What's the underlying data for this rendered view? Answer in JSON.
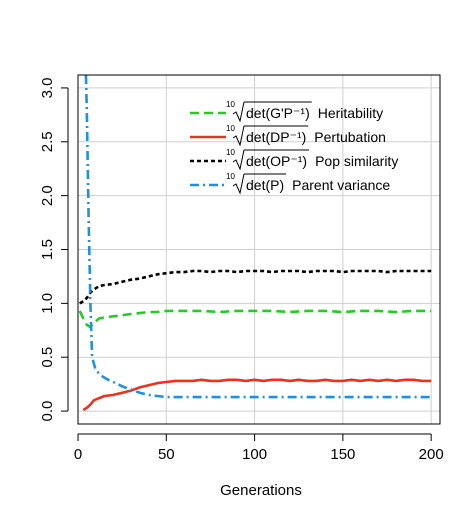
{
  "chart_data": {
    "type": "line",
    "title": "",
    "xlabel": "Generations",
    "ylabel": "",
    "xlim": [
      0,
      205
    ],
    "ylim": [
      -0.12,
      3.12
    ],
    "xticks": [
      0,
      50,
      100,
      150,
      200
    ],
    "yticks": [
      0.0,
      0.5,
      1.0,
      1.5,
      2.0,
      2.5,
      3.0
    ],
    "xtick_labels": [
      "0",
      "50",
      "100",
      "150",
      "200"
    ],
    "ytick_labels": [
      "0.0",
      "0.5",
      "1.0",
      "1.5",
      "2.0",
      "2.5",
      "3.0"
    ],
    "grid": true,
    "legend_position": "top-right",
    "series": [
      {
        "name": "Heritability",
        "legend_formula": "det(G'P⁻¹)",
        "color": "#22cc22",
        "dash": "dashed",
        "x": [
          1,
          3,
          5,
          7,
          9,
          12,
          15,
          20,
          25,
          30,
          35,
          40,
          45,
          50,
          55,
          60,
          70,
          80,
          90,
          100,
          110,
          120,
          130,
          140,
          150,
          160,
          170,
          180,
          190,
          200
        ],
        "y": [
          0.93,
          0.86,
          0.8,
          0.78,
          0.82,
          0.86,
          0.87,
          0.88,
          0.89,
          0.9,
          0.91,
          0.92,
          0.92,
          0.93,
          0.93,
          0.93,
          0.93,
          0.92,
          0.93,
          0.93,
          0.93,
          0.92,
          0.93,
          0.93,
          0.92,
          0.93,
          0.93,
          0.92,
          0.93,
          0.93
        ]
      },
      {
        "name": "Pertubation",
        "legend_formula": "det(DP⁻¹)",
        "color": "#e8341c",
        "dash": "solid",
        "x": [
          3,
          5,
          7,
          9,
          12,
          15,
          20,
          25,
          30,
          35,
          40,
          45,
          50,
          55,
          60,
          65,
          70,
          75,
          80,
          85,
          90,
          95,
          100,
          105,
          110,
          115,
          120,
          125,
          130,
          135,
          140,
          145,
          150,
          155,
          160,
          165,
          170,
          175,
          180,
          185,
          190,
          195,
          200
        ],
        "y": [
          0.01,
          0.03,
          0.06,
          0.1,
          0.12,
          0.14,
          0.15,
          0.17,
          0.19,
          0.22,
          0.24,
          0.26,
          0.27,
          0.28,
          0.28,
          0.28,
          0.29,
          0.28,
          0.28,
          0.29,
          0.29,
          0.28,
          0.29,
          0.28,
          0.29,
          0.29,
          0.28,
          0.29,
          0.28,
          0.28,
          0.29,
          0.28,
          0.28,
          0.29,
          0.28,
          0.29,
          0.28,
          0.29,
          0.28,
          0.29,
          0.29,
          0.28,
          0.28
        ]
      },
      {
        "name": "Pop similarity",
        "legend_formula": "det(OP⁻¹)",
        "color": "#000000",
        "dash": "dotted",
        "x": [
          1,
          3,
          5,
          7,
          9,
          12,
          15,
          20,
          25,
          30,
          35,
          40,
          45,
          50,
          55,
          60,
          65,
          70,
          75,
          80,
          85,
          90,
          95,
          100,
          105,
          110,
          115,
          120,
          125,
          130,
          135,
          140,
          145,
          150,
          155,
          160,
          165,
          170,
          175,
          180,
          185,
          190,
          195,
          200
        ],
        "y": [
          1.0,
          1.02,
          1.05,
          1.1,
          1.13,
          1.16,
          1.17,
          1.18,
          1.2,
          1.22,
          1.23,
          1.25,
          1.27,
          1.28,
          1.29,
          1.29,
          1.3,
          1.3,
          1.29,
          1.3,
          1.3,
          1.29,
          1.3,
          1.3,
          1.3,
          1.29,
          1.3,
          1.3,
          1.3,
          1.29,
          1.3,
          1.3,
          1.3,
          1.29,
          1.3,
          1.3,
          1.3,
          1.3,
          1.29,
          1.3,
          1.3,
          1.3,
          1.3,
          1.3
        ]
      },
      {
        "name": "Parent variance",
        "legend_formula": "det(P)",
        "color": "#1e90e0",
        "dash": "dashdot",
        "x": [
          4.5,
          5,
          6,
          7,
          8,
          10,
          13,
          16,
          20,
          25,
          30,
          35,
          40,
          45,
          50,
          60,
          70,
          80,
          90,
          100,
          110,
          120,
          130,
          140,
          150,
          160,
          170,
          180,
          190,
          200
        ],
        "y": [
          3.12,
          2.8,
          1.8,
          1.0,
          0.5,
          0.38,
          0.33,
          0.3,
          0.27,
          0.23,
          0.2,
          0.17,
          0.15,
          0.14,
          0.13,
          0.13,
          0.13,
          0.13,
          0.13,
          0.13,
          0.13,
          0.13,
          0.13,
          0.13,
          0.13,
          0.13,
          0.13,
          0.13,
          0.13,
          0.13
        ]
      }
    ],
    "legend_root_index": "10"
  }
}
